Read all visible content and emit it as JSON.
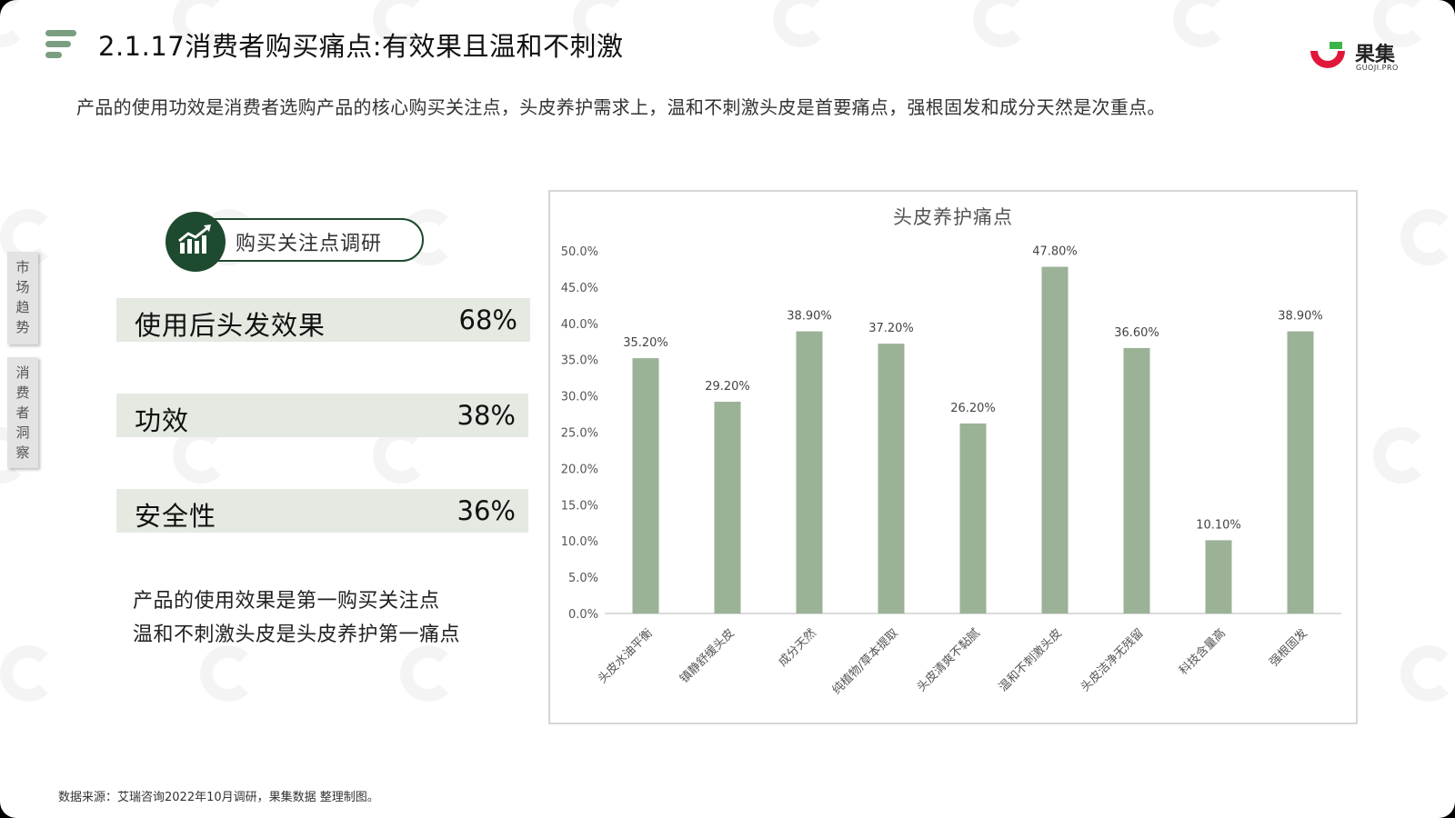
{
  "header": {
    "title": "2.1.17消费者购买痛点:有效果且温和不刺激",
    "subtitle": "产品的使用功效是消费者选购产品的核心购买关注点，头皮养护需求上，温和不刺激头皮是首要痛点，强根固发和成分天然是次重点。",
    "logo_text": "果集",
    "logo_sub": "GUOJI.PRO"
  },
  "side_tabs": [
    {
      "label": "市场趋势"
    },
    {
      "label": "消费者洞察"
    }
  ],
  "survey": {
    "title": "购买关注点调研",
    "items": [
      {
        "label": "使用后头发效果",
        "value": "68%"
      },
      {
        "label": "功效",
        "value": "38%"
      },
      {
        "label": "安全性",
        "value": "36%"
      }
    ],
    "takeaways": [
      "产品的使用效果是第一购买关注点",
      "温和不刺激头皮是头皮养护第一痛点"
    ]
  },
  "chart_data": {
    "type": "bar",
    "title": "头皮养护痛点",
    "categories": [
      "头皮水油平衡",
      "镇静舒缓头皮",
      "成分天然",
      "纯植物/草本提取",
      "头皮清爽不黏腻",
      "温和不刺激头皮",
      "头皮洁净无残留",
      "科技含量高",
      "强根固发"
    ],
    "values": [
      35.2,
      29.2,
      38.9,
      37.2,
      26.2,
      47.8,
      36.6,
      10.1,
      38.9
    ],
    "value_labels": [
      "35.20%",
      "29.20%",
      "38.90%",
      "37.20%",
      "26.20%",
      "47.80%",
      "36.60%",
      "10.10%",
      "38.90%"
    ],
    "y_ticks": [
      "0.0%",
      "5.0%",
      "10.0%",
      "15.0%",
      "20.0%",
      "25.0%",
      "30.0%",
      "35.0%",
      "40.0%",
      "45.0%",
      "50.0%"
    ],
    "ylim": [
      0,
      50
    ],
    "xlabel": "",
    "ylabel": "",
    "grid": false,
    "bar_color": "#9bb297"
  },
  "source": "数据来源：艾瑞咨询2022年10月调研，果集数据 整理制图。",
  "colors": {
    "accent_dark": "#1e4a2f",
    "metric_bg": "#e4e9e1",
    "menu_icon": "#7a9f80",
    "logo_red": "#e0173b",
    "logo_green": "#3bb54a"
  }
}
